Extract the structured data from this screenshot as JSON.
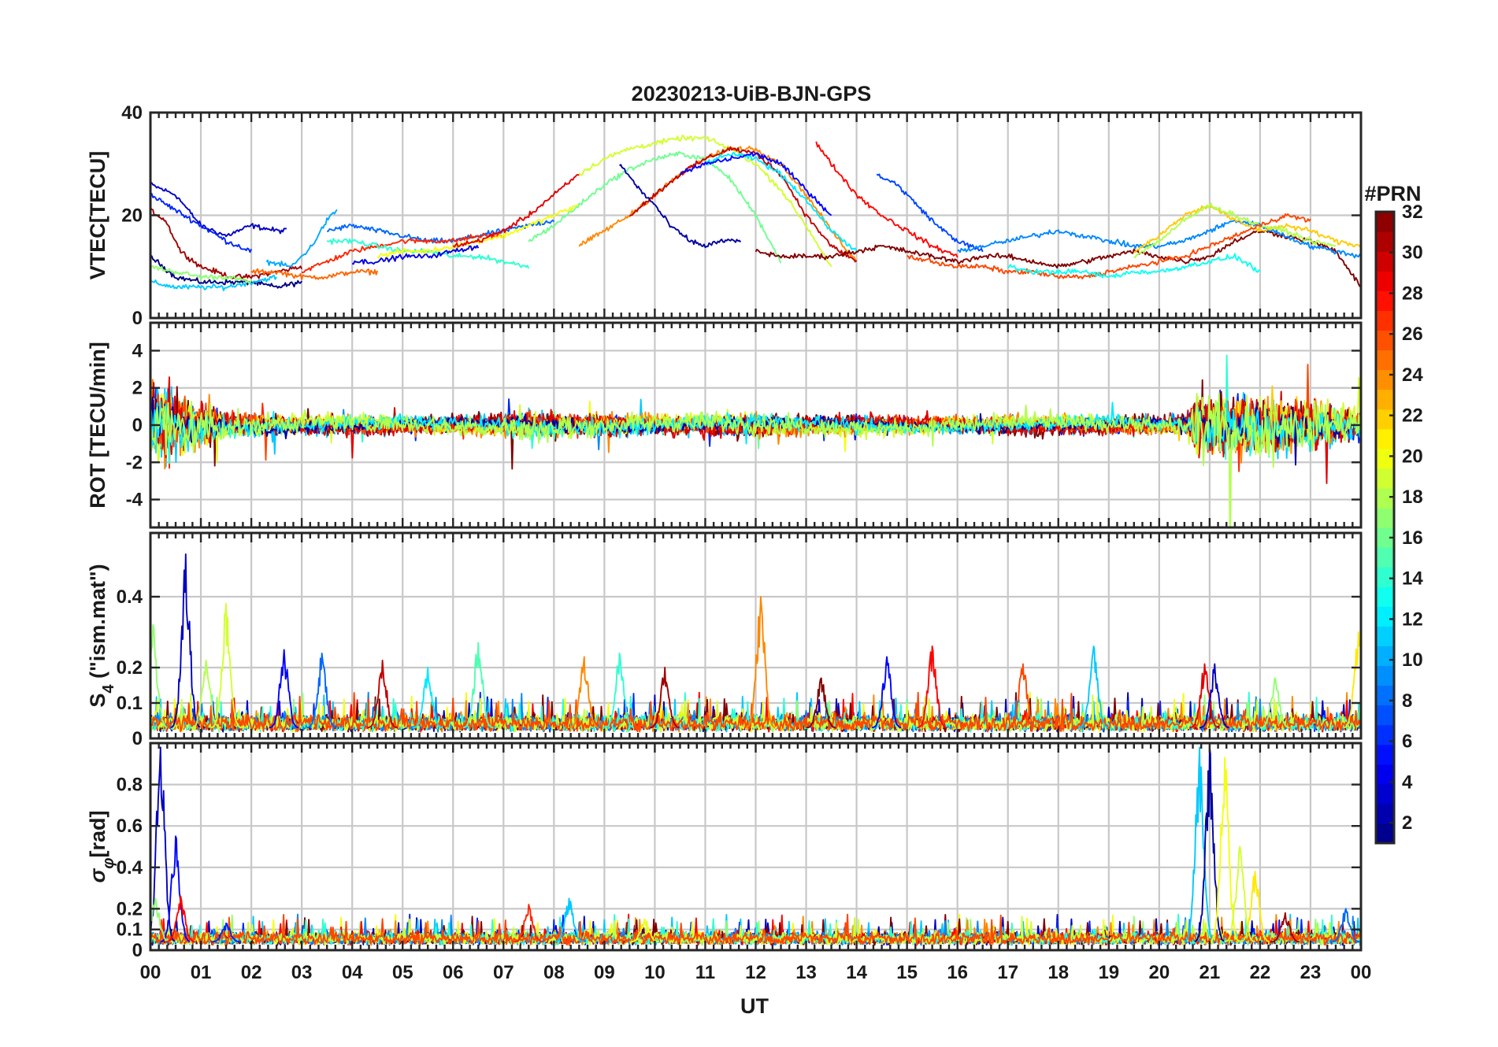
{
  "chart_data": {
    "type": "line",
    "title": "20230213-UiB-BJN-GPS",
    "xlabel": "UT",
    "x_tick_labels": [
      "00",
      "01",
      "02",
      "03",
      "04",
      "05",
      "06",
      "07",
      "08",
      "09",
      "10",
      "11",
      "12",
      "13",
      "14",
      "15",
      "16",
      "17",
      "18",
      "19",
      "20",
      "21",
      "22",
      "23",
      "00"
    ],
    "xlim": [
      0,
      24
    ],
    "grid": true,
    "colorbar": {
      "label": "#PRN",
      "range": [
        1,
        32
      ],
      "tick_labels": [
        "2",
        "4",
        "6",
        "8",
        "10",
        "12",
        "14",
        "16",
        "18",
        "20",
        "22",
        "24",
        "26",
        "28",
        "30",
        "32"
      ],
      "colormap": "jet"
    },
    "panels": [
      {
        "ylabel": "VTEC[TECU]",
        "ylim": [
          0,
          40
        ],
        "ytick_labels": [
          "0",
          "20",
          "40"
        ],
        "series": [
          {
            "prn": 3,
            "x": [
              0,
              0.5,
              1,
              1.5,
              2,
              2.5,
              2.7
            ],
            "y": [
              26,
              24,
              18,
              16,
              18,
              17,
              17
            ]
          },
          {
            "prn": 1,
            "x": [
              0,
              0.5,
              1,
              1.5,
              2,
              2.5,
              3
            ],
            "y": [
              12,
              8,
              7,
              7,
              7,
              6,
              7
            ]
          },
          {
            "prn": 31,
            "x": [
              0,
              0.3,
              0.6,
              1,
              1.3,
              1.6,
              2,
              2.5,
              3
            ],
            "y": [
              21,
              19,
              13,
              10,
              9,
              8,
              8,
              9,
              10
            ]
          },
          {
            "prn": 6,
            "x": [
              0,
              0.5,
              1,
              1.5,
              2
            ],
            "y": [
              24,
              21,
              18,
              15,
              13
            ]
          },
          {
            "prn": 11,
            "x": [
              0,
              0.5,
              1,
              1.5,
              2,
              2.5
            ],
            "y": [
              7,
              6,
              6,
              6,
              7,
              8
            ]
          },
          {
            "prn": 17,
            "x": [
              0,
              0.5,
              1,
              1.5,
              2
            ],
            "y": [
              10,
              9,
              8,
              8,
              7
            ]
          },
          {
            "prn": 25,
            "x": [
              2,
              2.5,
              3,
              3.5,
              4,
              4.5
            ],
            "y": [
              9,
              9,
              8,
              8,
              9,
              9
            ]
          },
          {
            "prn": 10,
            "x": [
              2.3,
              2.8,
              3.2,
              3.5,
              3.7
            ],
            "y": [
              11,
              10,
              14,
              19,
              21
            ]
          },
          {
            "prn": 8,
            "x": [
              3.5,
              4,
              4.5,
              5,
              5.5,
              6,
              6.5,
              7,
              7.5,
              8
            ],
            "y": [
              17,
              18,
              17,
              16,
              15,
              15,
              16,
              17,
              18,
              19
            ]
          },
          {
            "prn": 27,
            "x": [
              3,
              3.5,
              4,
              4.5,
              5,
              5.5,
              6,
              6.5,
              7
            ],
            "y": [
              9,
              11,
              13,
              14,
              15,
              15,
              15,
              16,
              16
            ]
          },
          {
            "prn": 14,
            "x": [
              3.5,
              4,
              4.5,
              5,
              5.5,
              6,
              6.5,
              7,
              7.5
            ],
            "y": [
              15,
              15,
              14,
              13,
              13,
              12,
              12,
              11,
              10
            ]
          },
          {
            "prn": 4,
            "x": [
              4,
              4.5,
              5,
              5.5,
              6,
              6.5
            ],
            "y": [
              11,
              11,
              12,
              12,
              13,
              14
            ]
          },
          {
            "prn": 20,
            "x": [
              4.5,
              5,
              5.5,
              6,
              6.5,
              7,
              7.5,
              8,
              8.5
            ],
            "y": [
              12,
              13,
              13,
              14,
              15,
              16,
              18,
              20,
              22
            ]
          },
          {
            "prn": 29,
            "x": [
              6,
              6.5,
              7,
              7.5,
              8,
              8.5
            ],
            "y": [
              14,
              15,
              17,
              20,
              24,
              28
            ]
          },
          {
            "prn": 16,
            "x": [
              7.5,
              8,
              8.5,
              9,
              9.5,
              10,
              10.5,
              11,
              11.5,
              12,
              12.5
            ],
            "y": [
              15,
              18,
              22,
              26,
              29,
              31,
              32,
              31,
              27,
              20,
              11
            ]
          },
          {
            "prn": 19,
            "x": [
              8.5,
              9,
              9.5,
              10,
              10.5,
              11,
              11.5,
              12,
              12.5,
              13,
              13.5
            ],
            "y": [
              28,
              31,
              33,
              34,
              35,
              35,
              33,
              30,
              25,
              18,
              10
            ]
          },
          {
            "prn": 24,
            "x": [
              8.5,
              9,
              9.5,
              10,
              10.5,
              11,
              11.5,
              12,
              12.5,
              13,
              13.5,
              14
            ],
            "y": [
              14,
              17,
              20,
              24,
              28,
              31,
              33,
              33,
              30,
              24,
              17,
              11
            ]
          },
          {
            "prn": 30,
            "x": [
              9.5,
              10,
              10.5,
              11,
              11.5,
              12,
              12.5,
              13,
              13.5,
              14
            ],
            "y": [
              20,
              24,
              28,
              31,
              33,
              32,
              28,
              20,
              14,
              11
            ]
          },
          {
            "prn": 2,
            "x": [
              9.3,
              9.7,
              10,
              10.3,
              10.7,
              11,
              11.3,
              11.7
            ],
            "y": [
              30,
              25,
              22,
              18,
              15,
              14,
              15,
              15
            ]
          },
          {
            "prn": 12,
            "x": [
              11,
              11.5,
              12,
              12.5,
              13,
              13.5,
              14
            ],
            "y": [
              30,
              32,
              31,
              28,
              23,
              17,
              13
            ]
          },
          {
            "prn": 5,
            "x": [
              10.5,
              11,
              11.5,
              12,
              12.5,
              13,
              13.5
            ],
            "y": [
              28,
              30,
              31,
              32,
              30,
              25,
              20
            ]
          },
          {
            "prn": 28,
            "x": [
              13.2,
              13.5,
              14,
              14.5,
              15,
              15.5,
              16
            ],
            "y": [
              34,
              30,
              24,
              20,
              17,
              14,
              12
            ]
          },
          {
            "prn": 7,
            "x": [
              14.4,
              14.8,
              15.2,
              15.6,
              16,
              16.5
            ],
            "y": [
              28,
              26,
              22,
              18,
              15,
              13
            ]
          },
          {
            "prn": 32,
            "x": [
              12,
              12.5,
              13,
              13.5,
              14,
              14.5,
              15,
              15.5,
              16,
              16.5,
              17,
              17.5,
              18,
              18.5,
              19,
              19.5,
              20,
              20.5,
              21,
              21.5,
              22,
              22.5,
              23,
              23.5,
              24
            ],
            "y": [
              13,
              12,
              12,
              12,
              13,
              14,
              13,
              12,
              11,
              12,
              12,
              11,
              10,
              11,
              12,
              13,
              12,
              11,
              12,
              15,
              17,
              16,
              15,
              13,
              6
            ]
          },
          {
            "prn": 9,
            "x": [
              16,
              16.5,
              17,
              17.5,
              18,
              18.5,
              19,
              19.5,
              20,
              20.5,
              21,
              21.5,
              22,
              22.5,
              23,
              23.5,
              24
            ],
            "y": [
              13,
              14,
              15,
              16,
              17,
              16,
              15,
              14,
              14,
              15,
              17,
              19,
              18,
              16,
              14,
              13,
              12
            ]
          },
          {
            "prn": 22,
            "x": [
              19.5,
              20,
              20.5,
              21,
              21.5,
              22,
              22.5,
              23,
              23.5,
              24
            ],
            "y": [
              13,
              16,
              20,
              22,
              19,
              17,
              18,
              17,
              15,
              14
            ]
          },
          {
            "prn": 18,
            "x": [
              19.5,
              20,
              20.5,
              21,
              21.5,
              22,
              22.5,
              23,
              23.5
            ],
            "y": [
              12,
              15,
              19,
              22,
              20,
              18,
              17,
              15,
              14
            ]
          },
          {
            "prn": 26,
            "x": [
              15,
              15.5,
              16,
              16.5,
              17,
              17.5,
              18,
              18.5,
              19,
              19.5,
              20,
              20.5,
              21,
              21.5,
              22,
              22.5,
              23
            ],
            "y": [
              12,
              11,
              10,
              10,
              9,
              9,
              8,
              8,
              9,
              10,
              11,
              12,
              14,
              16,
              18,
              20,
              19
            ]
          },
          {
            "prn": 13,
            "x": [
              17,
              17.5,
              18,
              18.5,
              19,
              19.5,
              20,
              20.5,
              21,
              21.5,
              22
            ],
            "y": [
              10,
              9,
              9,
              9,
              8,
              9,
              9,
              10,
              11,
              12,
              9
            ]
          }
        ]
      },
      {
        "ylabel": "ROT [TECU/min]",
        "ylim": [
          -5.5,
          5.5
        ],
        "ytick_labels": [
          "-4",
          "-2",
          "0",
          "2",
          "4"
        ],
        "noise": {
          "x": [
            0,
            0.7,
            1.5,
            3,
            5,
            7,
            7.5,
            8.5,
            10,
            11.5,
            13,
            15,
            17,
            19,
            20.5,
            20.8,
            21.5,
            22.5,
            23.5,
            24
          ],
          "amplitude": [
            2.2,
            1.6,
            0.7,
            0.5,
            0.45,
            0.5,
            0.8,
            0.6,
            0.5,
            0.6,
            0.5,
            0.45,
            0.45,
            0.45,
            0.5,
            1.8,
            1.7,
            1.6,
            1.0,
            0.8
          ]
        }
      },
      {
        "ylabel": "S4 (\"ism.mat\")",
        "ylabel_main": "S",
        "ylabel_sub": "4",
        "ylabel_rest": " (\"ism.mat\")",
        "ylim": [
          0,
          0.58
        ],
        "ytick_labels": [
          "0",
          "0.1",
          "0.2",
          "0.4"
        ],
        "baseline": 0.03,
        "peaks": [
          {
            "x": 0.05,
            "y": 0.32,
            "prn": 17
          },
          {
            "x": 0.7,
            "y": 0.52,
            "prn": 3
          },
          {
            "x": 1.5,
            "y": 0.38,
            "prn": 19
          },
          {
            "x": 1.1,
            "y": 0.22,
            "prn": 18
          },
          {
            "x": 2.65,
            "y": 0.25,
            "prn": 5
          },
          {
            "x": 3.4,
            "y": 0.24,
            "prn": 8
          },
          {
            "x": 4.6,
            "y": 0.22,
            "prn": 30
          },
          {
            "x": 5.5,
            "y": 0.2,
            "prn": 12
          },
          {
            "x": 6.5,
            "y": 0.27,
            "prn": 15
          },
          {
            "x": 8.6,
            "y": 0.23,
            "prn": 24
          },
          {
            "x": 9.3,
            "y": 0.24,
            "prn": 14
          },
          {
            "x": 10.2,
            "y": 0.2,
            "prn": 31
          },
          {
            "x": 12.1,
            "y": 0.4,
            "prn": 24
          },
          {
            "x": 13.3,
            "y": 0.17,
            "prn": 32
          },
          {
            "x": 14.6,
            "y": 0.23,
            "prn": 5
          },
          {
            "x": 15.5,
            "y": 0.26,
            "prn": 28
          },
          {
            "x": 17.3,
            "y": 0.21,
            "prn": 26
          },
          {
            "x": 18.7,
            "y": 0.26,
            "prn": 11
          },
          {
            "x": 20.9,
            "y": 0.21,
            "prn": 29
          },
          {
            "x": 21.1,
            "y": 0.21,
            "prn": 3
          },
          {
            "x": 22.3,
            "y": 0.17,
            "prn": 17
          },
          {
            "x": 23.95,
            "y": 0.3,
            "prn": 21
          }
        ]
      },
      {
        "ylabel": "σφ[rad]",
        "ylabel_main": "σ",
        "ylabel_sub": "φ",
        "ylabel_rest": "[rad]",
        "ylim": [
          0,
          1
        ],
        "ytick_labels": [
          "0",
          "0.1",
          "0.2",
          "0.4",
          "0.6",
          "0.8"
        ],
        "baseline": 0.04,
        "peaks": [
          {
            "x": 0.2,
            "y": 0.98,
            "prn": 3
          },
          {
            "x": 0.5,
            "y": 0.55,
            "prn": 5
          },
          {
            "x": 0.1,
            "y": 0.25,
            "prn": 17
          },
          {
            "x": 0.6,
            "y": 0.26,
            "prn": 28
          },
          {
            "x": 1.5,
            "y": 0.13,
            "prn": 6
          },
          {
            "x": 7.5,
            "y": 0.22,
            "prn": 27
          },
          {
            "x": 8.3,
            "y": 0.25,
            "prn": 11
          },
          {
            "x": 9.8,
            "y": 0.15,
            "prn": 20
          },
          {
            "x": 20.8,
            "y": 0.98,
            "prn": 11
          },
          {
            "x": 21.0,
            "y": 0.98,
            "prn": 2
          },
          {
            "x": 21.3,
            "y": 0.93,
            "prn": 20
          },
          {
            "x": 21.6,
            "y": 0.5,
            "prn": 19
          },
          {
            "x": 21.9,
            "y": 0.38,
            "prn": 21
          },
          {
            "x": 22.5,
            "y": 0.18,
            "prn": 31
          },
          {
            "x": 23.7,
            "y": 0.2,
            "prn": 8
          }
        ]
      }
    ]
  }
}
